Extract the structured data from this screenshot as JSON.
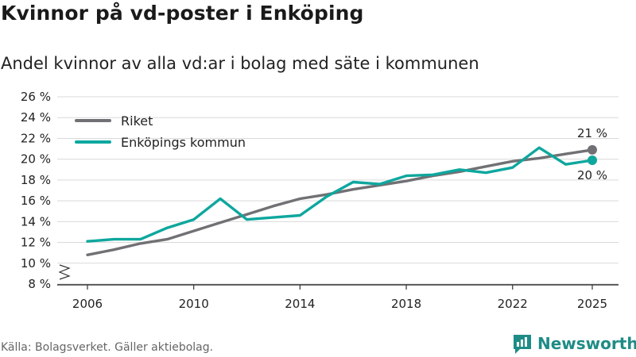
{
  "header": {
    "title": "Kvinnor på vd-poster i Enköping",
    "subtitle": "Andel kvinnor av alla vd:ar i bolag med säte i kommunen"
  },
  "footer": {
    "source": "Källa: Bolagsverket. Gäller aktiebolag.",
    "brand": "Newsworthy"
  },
  "colors": {
    "riket": "#717074",
    "enkoping": "#0ea79e",
    "grid": "#d9d9d9",
    "brand": "#1e8c86"
  },
  "chart_data": {
    "type": "line",
    "title": "Kvinnor på vd-poster i Enköping",
    "subtitle": "Andel kvinnor av alla vd:ar i bolag med säte i kommunen",
    "xlabel": "",
    "ylabel": "",
    "x": [
      2006,
      2007,
      2008,
      2009,
      2010,
      2011,
      2012,
      2013,
      2014,
      2015,
      2016,
      2017,
      2018,
      2019,
      2020,
      2021,
      2022,
      2023,
      2024,
      2025
    ],
    "xlim": [
      2006,
      2025
    ],
    "ylim": [
      8,
      26
    ],
    "x_ticks": [
      {
        "value": 2006,
        "label": "2006"
      },
      {
        "value": 2010,
        "label": "2010"
      },
      {
        "value": 2014,
        "label": "2014"
      },
      {
        "value": 2018,
        "label": "2018"
      },
      {
        "value": 2022,
        "label": "2022"
      },
      {
        "value": 2025,
        "label": "2025"
      }
    ],
    "y_ticks": [
      {
        "value": 8,
        "label": "8 %"
      },
      {
        "value": 10,
        "label": "10 %"
      },
      {
        "value": 12,
        "label": "12 %"
      },
      {
        "value": 14,
        "label": "14 %"
      },
      {
        "value": 16,
        "label": "16 %"
      },
      {
        "value": 18,
        "label": "18 %"
      },
      {
        "value": 20,
        "label": "20 %"
      },
      {
        "value": 22,
        "label": "22 %"
      },
      {
        "value": 24,
        "label": "24 %"
      },
      {
        "value": 26,
        "label": "26 %"
      }
    ],
    "grid": true,
    "axis_break": true,
    "legend_position": "top-left",
    "series": [
      {
        "name": "Riket",
        "color": "#717074",
        "values": [
          10.8,
          11.3,
          11.9,
          12.3,
          13.1,
          13.9,
          14.7,
          15.5,
          16.2,
          16.6,
          17.1,
          17.5,
          17.9,
          18.4,
          18.8,
          19.3,
          19.8,
          20.1,
          20.5,
          20.9
        ],
        "end_label": "21 %"
      },
      {
        "name": "Enköpings kommun",
        "color": "#0ea79e",
        "values": [
          12.1,
          12.3,
          12.3,
          13.4,
          14.2,
          16.2,
          14.2,
          14.4,
          14.6,
          16.4,
          17.8,
          17.6,
          18.4,
          18.5,
          19.0,
          18.7,
          19.2,
          21.1,
          19.5,
          19.9
        ],
        "end_label": "20 %"
      }
    ]
  }
}
